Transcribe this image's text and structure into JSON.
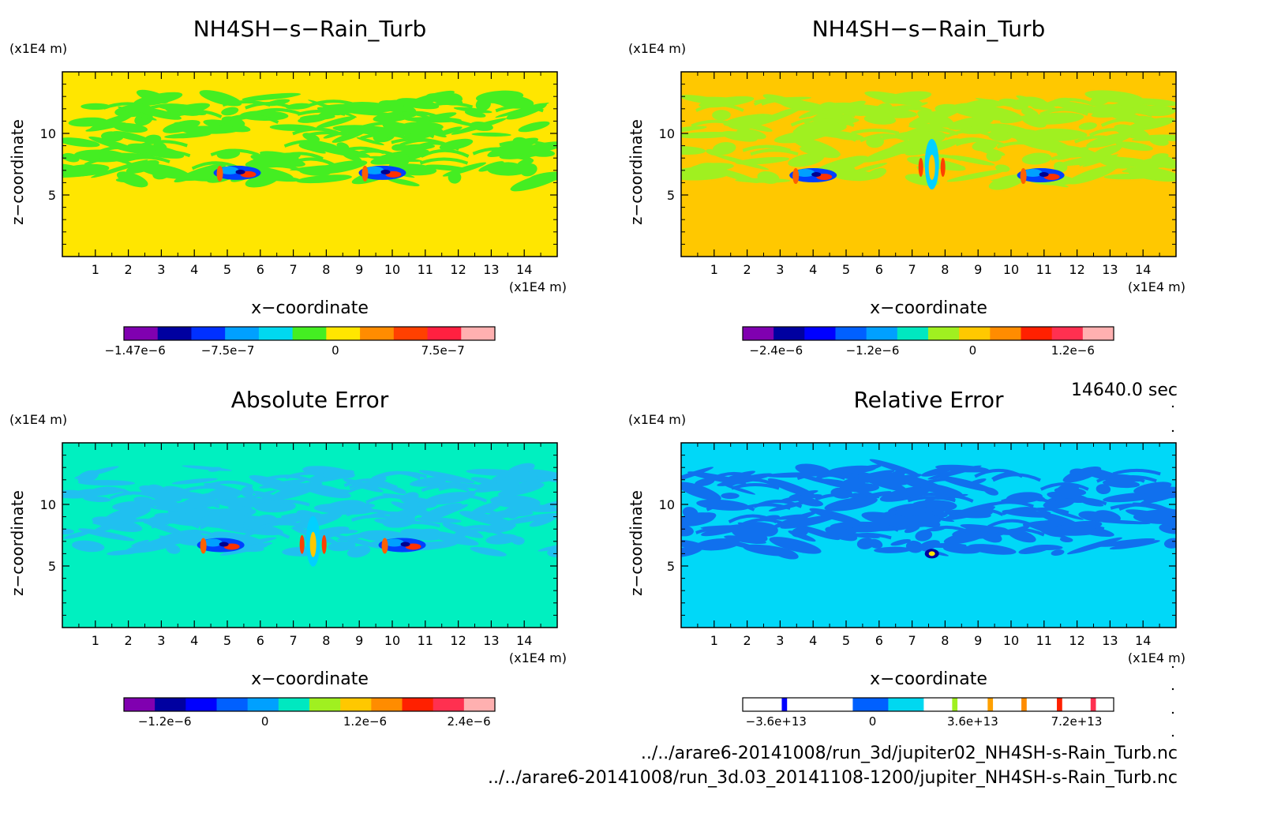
{
  "timestamp": "14640.0 sec",
  "files": [
    "../../arare6-20141008/run_3d/jupiter02_NH4SH-s-Rain_Turb.nc",
    "../../arare6-20141008/run_3d.03_20141108-1200/jupiter_NH4SH-s-Rain_Turb.nc"
  ],
  "chart_data": [
    {
      "type": "heatmap",
      "title": "NH4SH−s−Rain_Turb",
      "xlabel": "x−coordinate",
      "ylabel": "z−coordinate",
      "x_unit": "(x1E4 m)",
      "y_unit": "(x1E4 m)",
      "xlim": [
        0,
        15
      ],
      "ylim": [
        0,
        15
      ],
      "x_ticks": [
        "1",
        "2",
        "3",
        "4",
        "5",
        "6",
        "7",
        "8",
        "9",
        "10",
        "11",
        "12",
        "13",
        "14"
      ],
      "y_ticks": [
        "5",
        "10"
      ],
      "background": "#ffe600",
      "pattern_color": "#44ee22",
      "colorbar": {
        "colors": [
          "#8000b0",
          "#0000a0",
          "#0030ff",
          "#00a0ff",
          "#00d8f0",
          "#44ee22",
          "#ffe600",
          "#ff8c00",
          "#ff4000",
          "#ff2040",
          "#ffb0b0"
        ],
        "tick_labels": [
          "−1.47e−6",
          "−7.5e−7",
          "0",
          "7.5e−7"
        ]
      },
      "features": [
        {
          "kind": "vortex",
          "x": 5.3,
          "z": 6.8
        },
        {
          "kind": "vortex",
          "x": 9.7,
          "z": 6.8
        }
      ]
    },
    {
      "type": "heatmap",
      "title": "NH4SH−s−Rain_Turb",
      "xlabel": "x−coordinate",
      "ylabel": "z−coordinate",
      "x_unit": "(x1E4 m)",
      "y_unit": "(x1E4 m)",
      "xlim": [
        0,
        15
      ],
      "ylim": [
        0,
        15
      ],
      "x_ticks": [
        "1",
        "2",
        "3",
        "4",
        "5",
        "6",
        "7",
        "8",
        "9",
        "10",
        "11",
        "12",
        "13",
        "14"
      ],
      "y_ticks": [
        "5",
        "10"
      ],
      "background": "#ffc800",
      "pattern_color": "#a0f020",
      "colorbar": {
        "colors": [
          "#8000b0",
          "#0000a0",
          "#0000ff",
          "#0060ff",
          "#00a0ff",
          "#00e8c0",
          "#a0f020",
          "#ffc800",
          "#ff8c00",
          "#ff2000",
          "#ff3050",
          "#ffb0b0"
        ],
        "tick_labels": [
          "−2.4e−6",
          "−1.2e−6",
          "0",
          "1.2e−6"
        ]
      },
      "features": [
        {
          "kind": "vortex",
          "x": 4.0,
          "z": 6.6
        },
        {
          "kind": "column",
          "x": 7.6,
          "z": 7.5
        },
        {
          "kind": "vortex",
          "x": 10.9,
          "z": 6.6
        }
      ]
    },
    {
      "type": "heatmap",
      "title": "Absolute Error",
      "xlabel": "x−coordinate",
      "ylabel": "z−coordinate",
      "x_unit": "(x1E4 m)",
      "y_unit": "(x1E4 m)",
      "xlim": [
        0,
        15
      ],
      "ylim": [
        0,
        15
      ],
      "x_ticks": [
        "1",
        "2",
        "3",
        "4",
        "5",
        "6",
        "7",
        "8",
        "9",
        "10",
        "11",
        "12",
        "13",
        "14"
      ],
      "y_ticks": [
        "5",
        "10"
      ],
      "background": "#00f0c0",
      "pattern_color": "#20c0f0",
      "colorbar": {
        "colors": [
          "#8000b0",
          "#0000a0",
          "#0000ff",
          "#0060ff",
          "#00a0ff",
          "#00e8c0",
          "#a0f020",
          "#ffc800",
          "#ff8c00",
          "#ff2000",
          "#ff3050",
          "#ffb0b0"
        ],
        "tick_labels": [
          "−1.2e−6",
          "0",
          "1.2e−6",
          "2.4e−6"
        ]
      },
      "features": [
        {
          "kind": "vortex",
          "x": 4.8,
          "z": 6.7
        },
        {
          "kind": "column",
          "x": 7.6,
          "z": 7.0
        },
        {
          "kind": "vortex",
          "x": 10.3,
          "z": 6.7
        }
      ]
    },
    {
      "type": "heatmap",
      "title": "Relative Error",
      "xlabel": "x−coordinate",
      "ylabel": "z−coordinate",
      "x_unit": "(x1E4 m)",
      "y_unit": "(x1E4 m)",
      "xlim": [
        0,
        15
      ],
      "ylim": [
        0,
        15
      ],
      "x_ticks": [
        "1",
        "2",
        "3",
        "4",
        "5",
        "6",
        "7",
        "8",
        "9",
        "10",
        "11",
        "12",
        "13",
        "14"
      ],
      "y_ticks": [
        "5",
        "10"
      ],
      "background": "#00d8f8",
      "pattern_color": "#1070ee",
      "colorbar": {
        "colors": [
          "#ffffff",
          "#0000ff",
          "#ffffff",
          "#ffffff",
          "#0060ff",
          "#00d8f0",
          "#ffffff",
          "#a0f020",
          "#ffffff",
          "#ffa000",
          "#ffffff",
          "#ff8c00",
          "#ffffff",
          "#ff2000",
          "#ffffff",
          "#ff3050",
          "#ffffff"
        ],
        "widths": [
          1.1,
          0.15,
          0.85,
          1.0,
          1.0,
          1.0,
          0.8,
          0.15,
          0.85,
          0.15,
          0.8,
          0.15,
          0.85,
          0.15,
          0.8,
          0.15,
          0.5
        ],
        "tick_labels": [
          "−3.6e+13",
          "0",
          "3.6e+13",
          "7.2e+13"
        ]
      },
      "features": [
        {
          "kind": "dot",
          "x": 7.6,
          "z": 6.0
        }
      ]
    }
  ]
}
